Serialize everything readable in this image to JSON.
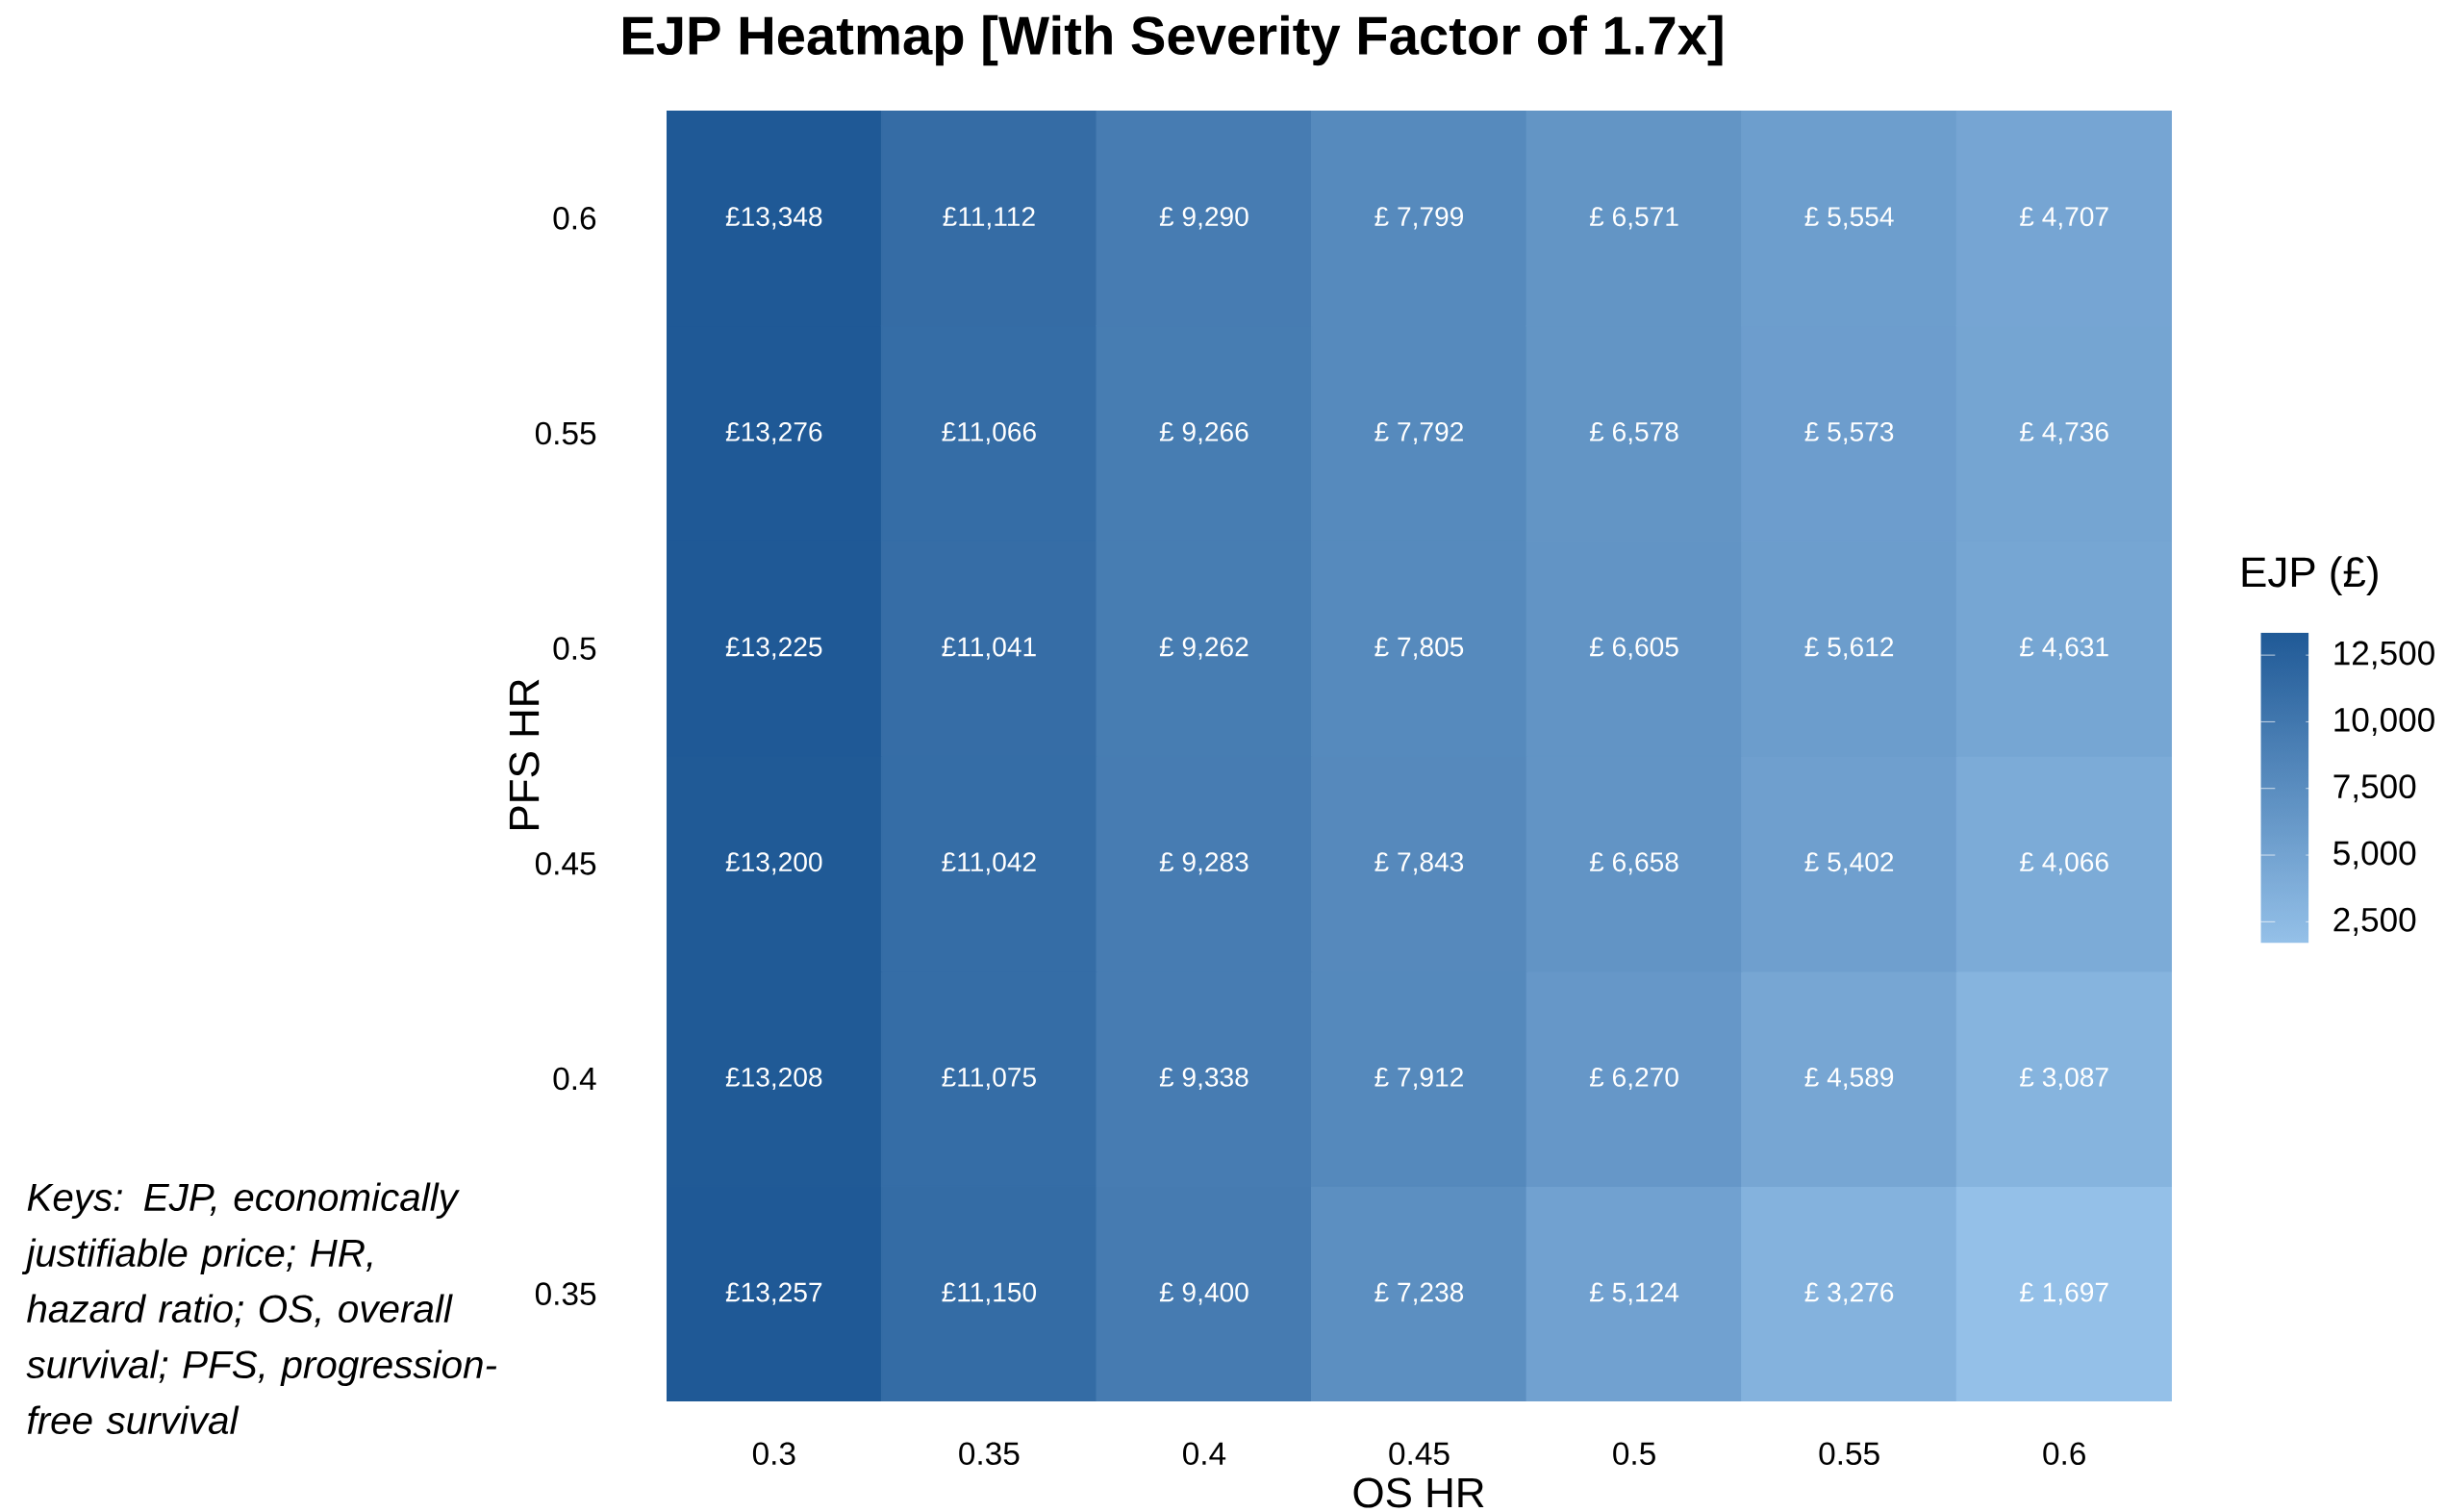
{
  "chart_data": {
    "type": "heatmap",
    "title": "EJP Heatmap [With Severity Factor of 1.7x]",
    "xlabel": "OS HR",
    "ylabel": "PFS HR",
    "clabel": "EJP (£)",
    "categories": [
      "0.3",
      "0.35",
      "0.4",
      "0.45",
      "0.5",
      "0.55",
      "0.6"
    ],
    "y_categories": [
      "0.6",
      "0.55",
      "0.5",
      "0.45",
      "0.4",
      "0.35"
    ],
    "cells": [
      [
        13348,
        11112,
        9290,
        7799,
        6571,
        5554,
        4707
      ],
      [
        13276,
        11066,
        9266,
        7792,
        6578,
        5573,
        4736
      ],
      [
        13225,
        11041,
        9262,
        7805,
        6605,
        5612,
        4631
      ],
      [
        13200,
        11042,
        9283,
        7843,
        6658,
        5402,
        4066
      ],
      [
        13208,
        11075,
        9338,
        7912,
        6270,
        4589,
        3087
      ],
      [
        13257,
        11150,
        9400,
        7238,
        5124,
        3276,
        1697
      ]
    ],
    "cell_labels": [
      [
        "£13,348",
        "£11,112",
        "£ 9,290",
        "£ 7,799",
        "£ 6,571",
        "£ 5,554",
        "£ 4,707"
      ],
      [
        "£13,276",
        "£11,066",
        "£ 9,266",
        "£ 7,792",
        "£ 6,578",
        "£ 5,573",
        "£ 4,736"
      ],
      [
        "£13,225",
        "£11,041",
        "£ 9,262",
        "£ 7,805",
        "£ 6,605",
        "£ 5,612",
        "£ 4,631"
      ],
      [
        "£13,200",
        "£11,042",
        "£ 9,283",
        "£ 7,843",
        "£ 6,658",
        "£ 5,402",
        "£ 4,066"
      ],
      [
        "£13,208",
        "£11,075",
        "£ 9,338",
        "£ 7,912",
        "£ 6,270",
        "£ 4,589",
        "£ 3,087"
      ],
      [
        "£13,257",
        "£11,150",
        "£ 9,400",
        "£ 7,238",
        "£ 5,124",
        "£ 3,276",
        "£ 1,697"
      ]
    ],
    "clim": [
      1697,
      13348
    ],
    "cticks": [
      {
        "value": 2500,
        "label": "2,500"
      },
      {
        "value": 5000,
        "label": "5,000"
      },
      {
        "value": 7500,
        "label": "7,500"
      },
      {
        "value": 10000,
        "label": "10,000"
      },
      {
        "value": 12500,
        "label": "12,500"
      }
    ],
    "annotations": [
      "Keys: EJP, economically justifiable price; HR, hazard ratio; OS, overall survival; PFS, progression-free survival"
    ]
  }
}
